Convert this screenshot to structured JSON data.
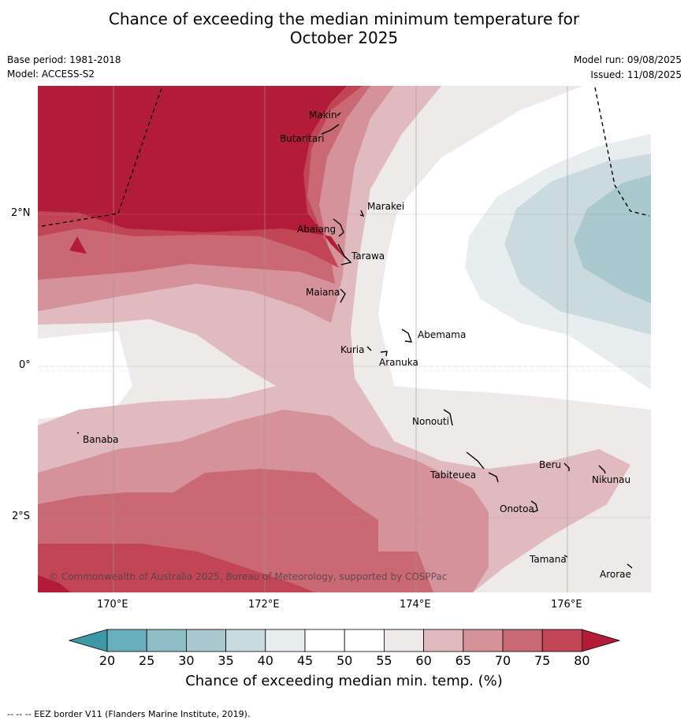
{
  "title_line1": "Chance of exceeding the median minimum temperature for",
  "title_line2": "October 2025",
  "base_period": "Base period: 1981-2018",
  "model": "Model: ACCESS-S2",
  "model_run": "Model run: 09/08/2025",
  "issued": "Issued: 11/08/2025",
  "lon_ticks": [
    "170°E",
    "172°E",
    "174°E",
    "176°E"
  ],
  "lat_ticks": [
    "2°N",
    "0°",
    "2°S"
  ],
  "places": {
    "makin": "Makin",
    "butaritari": "Butaritari",
    "marakei": "Marakei",
    "abaiang": "Abaiang",
    "tarawa": "Tarawa",
    "maiana": "Maiana",
    "abemama": "Abemama",
    "kuria": "Kuria",
    "aranuka": "Aranuka",
    "nonouti": "Nonouti",
    "banaba": "Banaba",
    "beru": "Beru",
    "tabiteuea": "Tabiteuea",
    "nikunau": "Nikunau",
    "onotoa": "Onotoa",
    "tamana": "Tamana",
    "arorae": "Arorae"
  },
  "copyright": "© Commonwealth of Australia 2025, Bureau of Meteorology, supported by COSPPac",
  "colorbar": {
    "ticks": [
      "20",
      "25",
      "30",
      "35",
      "40",
      "45",
      "50",
      "55",
      "60",
      "65",
      "70",
      "75",
      "80"
    ],
    "colors": {
      "below_20": "#3e98a8",
      "c20_25": "#6aafbd",
      "c25_30": "#8dbdc5",
      "c30_35": "#a9c9ce",
      "c35_40": "#cbdadf",
      "c40_45": "#e8edf0",
      "c45_50": "#ffffff",
      "c50_55": "#ffffff",
      "c55_60": "#eeeae9",
      "c60_65": "#e1bac0",
      "c65_70": "#d6929b",
      "c70_75": "#ca6873",
      "c75_80": "#c14555",
      "above_80": "#b21c38"
    },
    "label": "Chance of exceeding median min. temp. (%)"
  },
  "footnote": "--  --  -- EEZ border V11 (Flanders Marine Institute, 2019)."
}
